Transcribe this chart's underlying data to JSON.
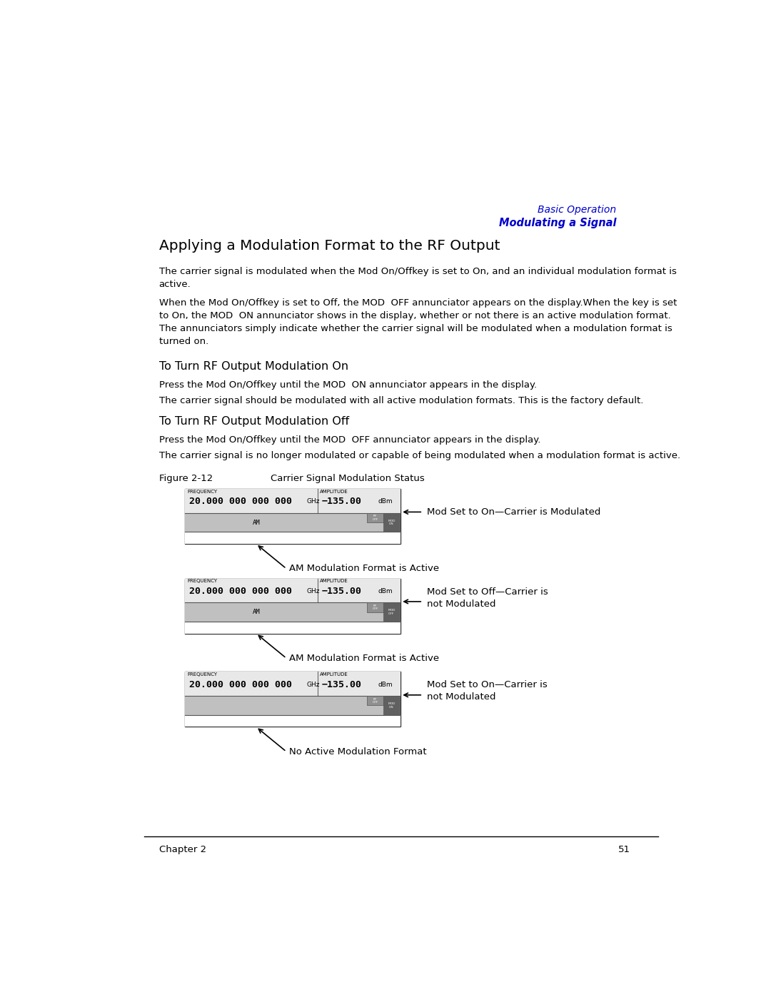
{
  "bg_color": "#ffffff",
  "page_width": 10.8,
  "page_height": 13.97,
  "dpi": 100,
  "header_line1": "Basic Operation",
  "header_line2": "Modulating a Signal",
  "header_color": "#0000cc",
  "main_title": "Applying a Modulation Format to the RF Output",
  "footer_chapter": "Chapter 2",
  "footer_page": "51"
}
